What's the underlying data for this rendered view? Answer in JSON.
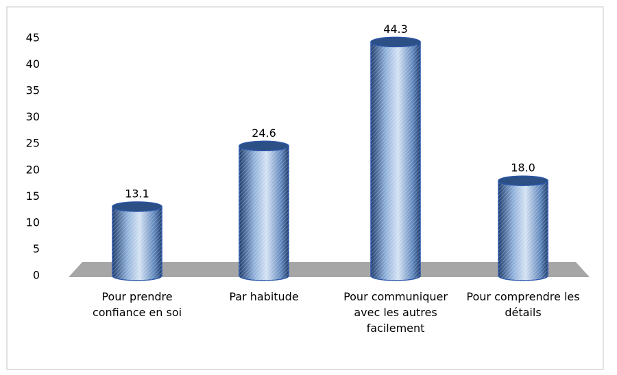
{
  "chart_data": {
    "type": "cylinder-bar",
    "categories": [
      "Pour prendre confiance en soi",
      "Par habitude",
      "Pour communiquer avec les autres facilement",
      "Pour comprendre les détails"
    ],
    "values": [
      13.1,
      24.6,
      44.3,
      18.0
    ],
    "value_labels": [
      "13.1",
      "24.6",
      "44.3",
      "18.0"
    ],
    "color": "#5a7fb5",
    "ylim": [
      0,
      45
    ],
    "yticks": [
      0,
      5,
      10,
      15,
      20,
      25,
      30,
      35,
      40,
      45
    ],
    "grid": false
  }
}
